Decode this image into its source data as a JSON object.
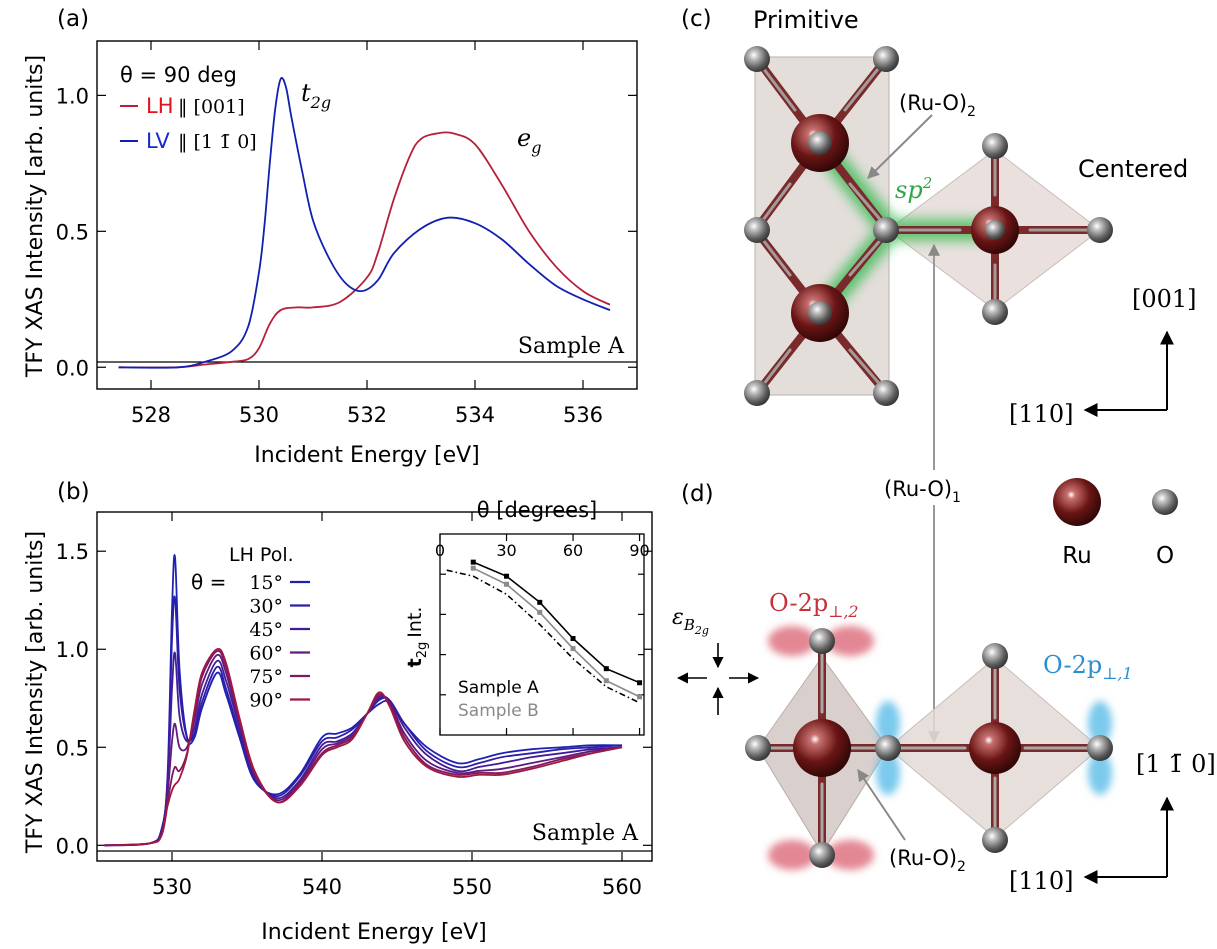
{
  "panels": {
    "a": "(a)",
    "b": "(b)",
    "c": "(c)",
    "d": "(d)"
  },
  "chart_data": [
    {
      "id": "a",
      "type": "line",
      "xlabel": "Incident Energy [eV]",
      "ylabel": "TFY XAS Intensity [arb. units]",
      "xlim": [
        527,
        537
      ],
      "ylim": [
        -0.08,
        1.2
      ],
      "xticks": [
        "528",
        "530",
        "532",
        "534",
        "536"
      ],
      "yticks": [
        "0.0",
        "0.5",
        "1.0"
      ],
      "legend_title": "θ = 90 deg",
      "sample_label": "Sample A",
      "peak_labels": {
        "t2g": "t",
        "t2g_sub": "2g",
        "eg": "e",
        "eg_sub": "g"
      },
      "series": [
        {
          "name": "LH",
          "suffix": "‖ [001]",
          "color": "#b5203a",
          "x": [
            527.4,
            528.5,
            529.0,
            529.5,
            529.8,
            530.0,
            530.2,
            530.4,
            530.7,
            531.0,
            531.5,
            532.0,
            532.2,
            532.5,
            532.8,
            533.0,
            533.3,
            533.6,
            534.0,
            534.5,
            535.0,
            535.5,
            536.0,
            536.5
          ],
          "y": [
            0.0,
            0.0,
            0.01,
            0.02,
            0.03,
            0.07,
            0.16,
            0.21,
            0.22,
            0.22,
            0.24,
            0.33,
            0.42,
            0.62,
            0.78,
            0.84,
            0.86,
            0.86,
            0.82,
            0.67,
            0.5,
            0.37,
            0.28,
            0.23
          ]
        },
        {
          "name": "LV",
          "suffix": "‖ [1 1̄ 0]",
          "color": "#1020b0",
          "x": [
            527.4,
            528.5,
            529.0,
            529.5,
            529.8,
            530.0,
            530.1,
            530.2,
            530.3,
            530.4,
            530.5,
            530.6,
            530.8,
            531.0,
            531.3,
            531.6,
            531.9,
            532.2,
            532.5,
            533.0,
            533.5,
            534.0,
            534.5,
            535.0,
            535.5,
            536.0,
            536.5
          ],
          "y": [
            0.0,
            0.0,
            0.02,
            0.06,
            0.15,
            0.35,
            0.52,
            0.75,
            0.95,
            1.06,
            1.03,
            0.92,
            0.72,
            0.54,
            0.4,
            0.31,
            0.28,
            0.32,
            0.42,
            0.51,
            0.55,
            0.53,
            0.47,
            0.38,
            0.3,
            0.25,
            0.21
          ]
        }
      ]
    },
    {
      "id": "b",
      "type": "line",
      "xlabel": "Incident Energy [eV]",
      "ylabel": "TFY XAS Intensity [arb. units]",
      "xlim": [
        525,
        562
      ],
      "ylim": [
        -0.08,
        1.7
      ],
      "xticks": [
        "530",
        "540",
        "550",
        "560"
      ],
      "yticks": [
        "0.0",
        "0.5",
        "1.0",
        "1.5"
      ],
      "legend_title": "LH Pol.",
      "theta_prefix": "θ =",
      "sample_label": "Sample A",
      "x": [
        525.5,
        528.5,
        529.3,
        529.7,
        530.0,
        530.2,
        530.5,
        531.0,
        531.5,
        532.0,
        533.0,
        533.6,
        534.5,
        535.5,
        537.0,
        538.5,
        540.0,
        541.0,
        542.0,
        543.0,
        543.8,
        544.5,
        545.5,
        547.0,
        549.0,
        550.5,
        552.0,
        554.0,
        556.0,
        558.0,
        560.0
      ],
      "series": [
        {
          "name": "15°",
          "color": "#1e22b0",
          "y": [
            0.0,
            0.01,
            0.08,
            0.35,
            1.2,
            1.47,
            0.9,
            0.55,
            0.55,
            0.7,
            0.88,
            0.77,
            0.55,
            0.33,
            0.26,
            0.36,
            0.55,
            0.57,
            0.6,
            0.67,
            0.72,
            0.73,
            0.62,
            0.5,
            0.42,
            0.44,
            0.47,
            0.49,
            0.5,
            0.51,
            0.51
          ]
        },
        {
          "name": "30°",
          "color": "#2c1eaa",
          "y": [
            0.0,
            0.01,
            0.08,
            0.33,
            1.05,
            1.26,
            0.8,
            0.55,
            0.57,
            0.73,
            0.91,
            0.8,
            0.57,
            0.34,
            0.25,
            0.35,
            0.53,
            0.55,
            0.59,
            0.67,
            0.74,
            0.74,
            0.62,
            0.48,
            0.4,
            0.42,
            0.45,
            0.47,
            0.49,
            0.5,
            0.51
          ]
        },
        {
          "name": "45°",
          "color": "#441c98",
          "y": [
            0.0,
            0.01,
            0.07,
            0.3,
            0.8,
            0.98,
            0.66,
            0.53,
            0.6,
            0.77,
            0.94,
            0.84,
            0.6,
            0.35,
            0.24,
            0.33,
            0.51,
            0.53,
            0.57,
            0.67,
            0.75,
            0.74,
            0.6,
            0.46,
            0.38,
            0.4,
            0.42,
            0.45,
            0.47,
            0.49,
            0.5
          ]
        },
        {
          "name": "60°",
          "color": "#601a80",
          "y": [
            0.0,
            0.01,
            0.06,
            0.26,
            0.53,
            0.62,
            0.5,
            0.5,
            0.64,
            0.82,
            0.97,
            0.88,
            0.62,
            0.36,
            0.23,
            0.32,
            0.49,
            0.52,
            0.56,
            0.67,
            0.76,
            0.73,
            0.57,
            0.43,
            0.37,
            0.38,
            0.39,
            0.42,
            0.45,
            0.48,
            0.5
          ]
        },
        {
          "name": "75°",
          "color": "#7e1a60",
          "y": [
            0.0,
            0.01,
            0.05,
            0.22,
            0.35,
            0.4,
            0.38,
            0.47,
            0.67,
            0.86,
            0.99,
            0.91,
            0.64,
            0.37,
            0.22,
            0.31,
            0.47,
            0.51,
            0.55,
            0.67,
            0.77,
            0.72,
            0.55,
            0.41,
            0.36,
            0.37,
            0.37,
            0.4,
            0.44,
            0.47,
            0.5
          ]
        },
        {
          "name": "90°",
          "color": "#a01840",
          "y": [
            0.0,
            0.01,
            0.05,
            0.2,
            0.28,
            0.31,
            0.34,
            0.46,
            0.69,
            0.88,
            1.0,
            0.93,
            0.65,
            0.38,
            0.22,
            0.3,
            0.46,
            0.5,
            0.54,
            0.67,
            0.78,
            0.71,
            0.53,
            0.4,
            0.35,
            0.36,
            0.36,
            0.39,
            0.43,
            0.47,
            0.5
          ]
        }
      ]
    },
    {
      "id": "b-inset",
      "type": "line",
      "title": "θ [degrees]",
      "ylabel": "t",
      "ylabel_sub": "2g",
      "ylabel_suffix": "Int.",
      "xlim": [
        0,
        92
      ],
      "ylim": [
        0,
        1
      ],
      "xticks": [
        "0",
        "30",
        "60",
        "90"
      ],
      "series": [
        {
          "name": "Sample A",
          "color": "#000000",
          "style": "solid",
          "x": [
            15,
            30,
            45,
            60,
            75,
            90
          ],
          "y": [
            0.86,
            0.79,
            0.66,
            0.48,
            0.33,
            0.26
          ]
        },
        {
          "name": "Sample B",
          "color": "#8a8a8a",
          "style": "solid",
          "x": [
            15,
            30,
            45,
            60,
            75,
            90
          ],
          "y": [
            0.83,
            0.75,
            0.61,
            0.43,
            0.27,
            0.19
          ]
        },
        {
          "name": "",
          "color": "#000000",
          "style": "dashed",
          "x": [
            3,
            15,
            30,
            45,
            60,
            75,
            90
          ],
          "y": [
            0.82,
            0.79,
            0.7,
            0.55,
            0.38,
            0.24,
            0.16
          ]
        }
      ]
    }
  ],
  "structure": {
    "primitive": "Primitive",
    "centered": "Centered",
    "ruo2_top": "(Ru-O)",
    "ruo2_top_sub": "2",
    "sp2": "sp",
    "sp2_sup": "2",
    "ruo1": "(Ru-O)",
    "ruo1_sub": "1",
    "ruo2_bottom": "(Ru-O)",
    "ruo2_bottom_sub": "2",
    "dir_001": "[001]",
    "dir_110_top": "[110]",
    "dir_1m10": "[1 1̄ 0]",
    "dir_110_bottom": "[110]",
    "legend_ru": "Ru",
    "legend_o": "O",
    "o2p_perp2": "O-2p",
    "o2p_perp2_sub": "⊥,2",
    "o2p_perp1": "O-2p",
    "o2p_perp1_sub": "⊥,1",
    "strain_label": "ε",
    "strain_sub": "B",
    "strain_subsub": "2g",
    "colors": {
      "ru": "#5a1212",
      "o": "#6b6b6b",
      "bond_green": "#2fb84a",
      "red_orbital": "#d96070",
      "blue_orbital": "#5bbce8",
      "o2p_red_text": "#c8303c",
      "o2p_blue_text": "#2a8fd0"
    }
  }
}
